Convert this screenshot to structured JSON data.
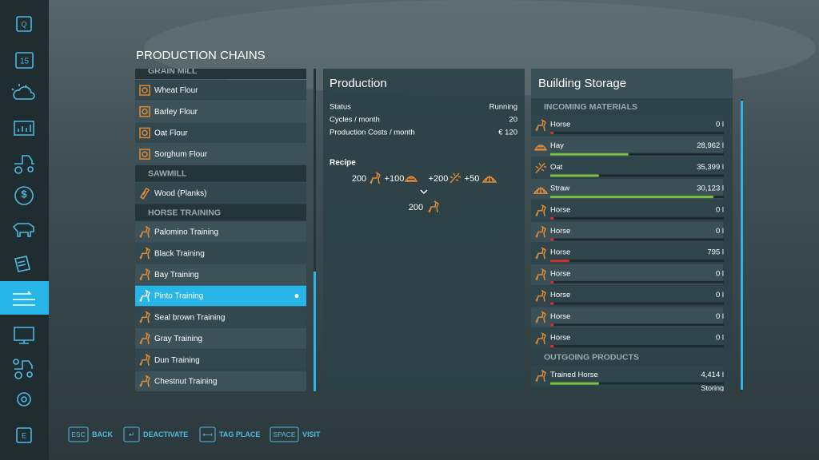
{
  "sidebar": {
    "top_key": "Q",
    "calendar_day": "15",
    "bottom_key": "E"
  },
  "page_title": "PRODUCTION CHAINS",
  "chains": [
    {
      "name": "GRAIN MILL",
      "items": [
        {
          "label": "Wheat Flour"
        },
        {
          "label": "Barley Flour"
        },
        {
          "label": "Oat Flour"
        },
        {
          "label": "Sorghum Flour"
        }
      ]
    },
    {
      "name": "SAWMILL",
      "items": [
        {
          "label": "Wood (Planks)"
        }
      ]
    },
    {
      "name": "HORSE TRAINING",
      "items": [
        {
          "label": "Palomino Training"
        },
        {
          "label": "Black Training"
        },
        {
          "label": "Bay Training"
        },
        {
          "label": "Pinto Training",
          "selected": true
        },
        {
          "label": "Seal brown Training"
        },
        {
          "label": "Gray Training"
        },
        {
          "label": "Dun Training"
        },
        {
          "label": "Chestnut Training"
        }
      ]
    }
  ],
  "production": {
    "title": "Production",
    "stats": [
      {
        "label": "Status",
        "value": "Running"
      },
      {
        "label": "Cycles / month",
        "value": 20
      },
      {
        "label": "Production Costs / month",
        "value": "€ 120"
      }
    ],
    "recipe": {
      "title": "Recipe",
      "inputs": [
        "200",
        "+100",
        "+200",
        "+50"
      ],
      "output": "200"
    }
  },
  "storage": {
    "title": "Building Storage",
    "incoming": {
      "title": "INCOMING MATERIALS",
      "rows": [
        {
          "name": "Horse",
          "amount": "0 l",
          "fill": 2,
          "color": "#d0302f"
        },
        {
          "name": "Hay",
          "amount": "28,962 l",
          "fill": 45,
          "color": "#7cc043"
        },
        {
          "name": "Oat",
          "amount": "35,399 l",
          "fill": 28,
          "color": "#7cc043"
        },
        {
          "name": "Straw",
          "amount": "30,123 l",
          "fill": 94,
          "color": "#7cc043"
        },
        {
          "name": "Horse",
          "amount": "0 l",
          "fill": 2,
          "color": "#d0302f"
        },
        {
          "name": "Horse",
          "amount": "0 l",
          "fill": 2,
          "color": "#d0302f"
        },
        {
          "name": "Horse",
          "amount": "795 l",
          "fill": 11,
          "color": "#d0302f"
        },
        {
          "name": "Horse",
          "amount": "0 l",
          "fill": 2,
          "color": "#d0302f"
        },
        {
          "name": "Horse",
          "amount": "0 l",
          "fill": 2,
          "color": "#d0302f"
        },
        {
          "name": "Horse",
          "amount": "0 l",
          "fill": 2,
          "color": "#d0302f"
        },
        {
          "name": "Horse",
          "amount": "0 l",
          "fill": 2,
          "color": "#d0302f"
        }
      ]
    },
    "outgoing": {
      "title": "OUTGOING PRODUCTS",
      "rows": [
        {
          "name": "Trained Horse",
          "amount": "4,414 l",
          "fill": 28,
          "color": "#7cc043",
          "status": "Storing"
        }
      ]
    }
  },
  "footer": {
    "actions": [
      {
        "key": "ESC",
        "label": "BACK"
      },
      {
        "key": "↵",
        "label": "DEACTIVATE"
      },
      {
        "key": "⟻",
        "label": "TAG PLACE"
      },
      {
        "key": "SPACE",
        "label": "VISIT"
      }
    ]
  }
}
